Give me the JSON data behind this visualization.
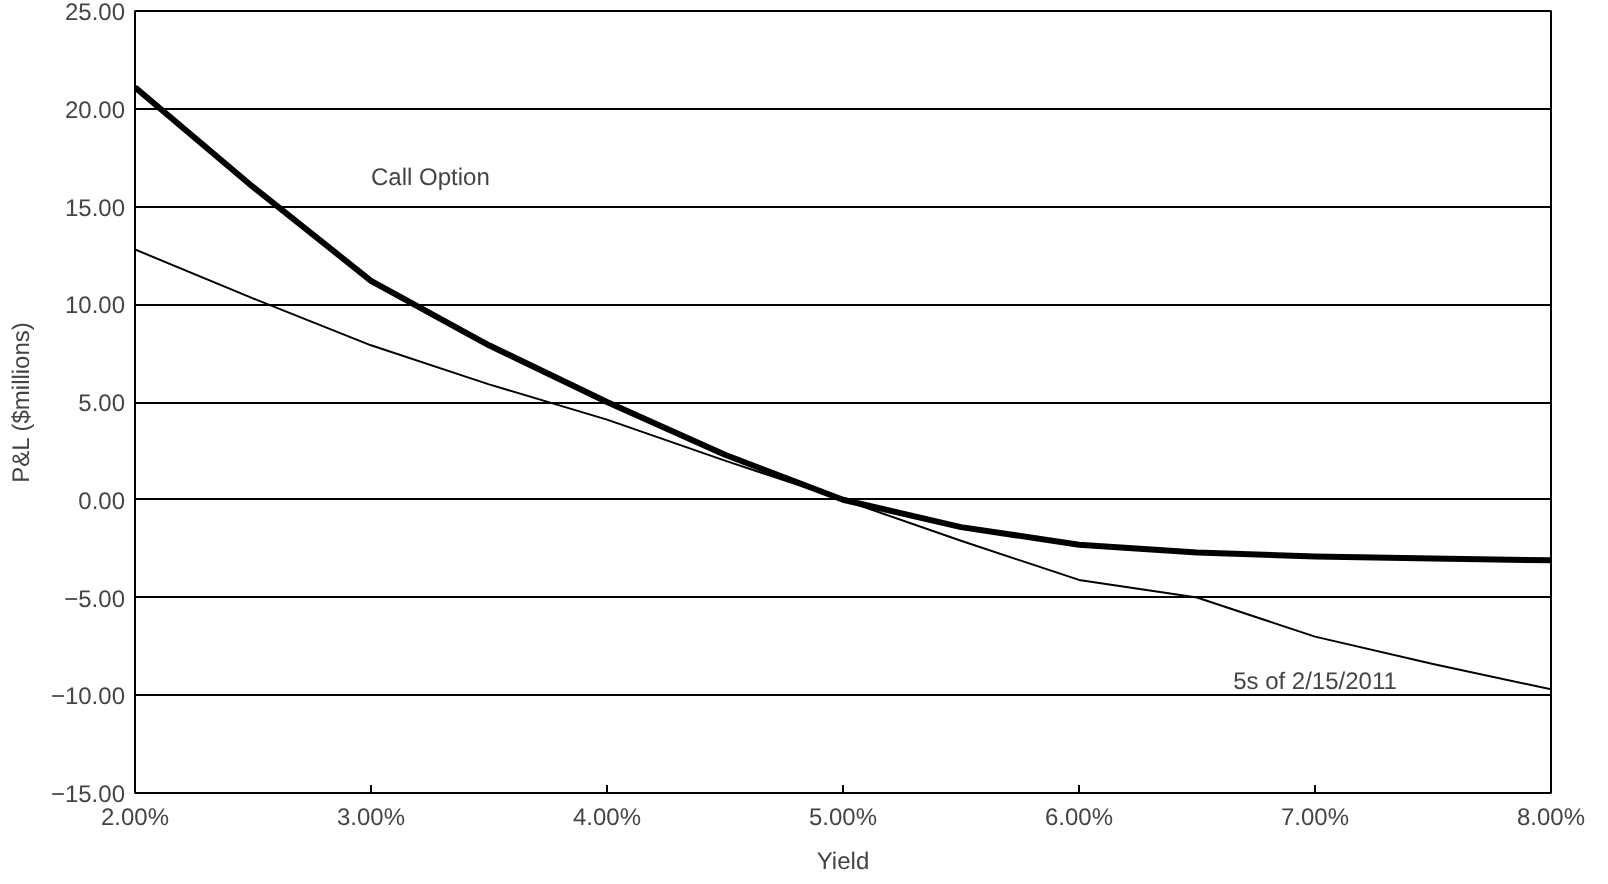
{
  "chart_data": {
    "type": "line",
    "xlabel": "Yield",
    "ylabel": "P&L ($millions)",
    "x": [
      2.0,
      2.5,
      3.0,
      3.5,
      4.0,
      4.5,
      5.0,
      5.5,
      6.0,
      6.5,
      7.0,
      7.5,
      8.0
    ],
    "series": [
      {
        "name": "Call Option",
        "color": "#000000",
        "values": [
          21.1,
          16.0,
          11.2,
          7.9,
          5.0,
          2.3,
          0.0,
          -1.4,
          -2.3,
          -2.7,
          -2.9,
          -3.0,
          -3.1
        ]
      },
      {
        "name": "5s of 2/15/2011",
        "color": "#000000",
        "values": [
          12.8,
          10.3,
          7.9,
          5.9,
          4.1,
          2.0,
          0.0,
          -2.1,
          -4.1,
          -5.0,
          -7.0,
          -8.4,
          -9.7
        ]
      }
    ],
    "xlim": [
      2.0,
      8.0
    ],
    "xticks": [
      {
        "value": 2,
        "label": "2.00%"
      },
      {
        "value": 3,
        "label": "3.00%"
      },
      {
        "value": 4,
        "label": "4.00%"
      },
      {
        "value": 5,
        "label": "5.00%"
      },
      {
        "value": 6,
        "label": "6.00%"
      },
      {
        "value": 7,
        "label": "7.00%"
      },
      {
        "value": 8,
        "label": "8.00%"
      }
    ],
    "ylim": [
      -15,
      25
    ],
    "yticks": [
      {
        "value": -15,
        "label": "−15.00"
      },
      {
        "value": -10,
        "label": "−10.00"
      },
      {
        "value": -5,
        "label": "−5.00"
      },
      {
        "value": 0,
        "label": "0.00"
      },
      {
        "value": 5,
        "label": "5.00"
      },
      {
        "value": 10,
        "label": "10.00"
      },
      {
        "value": 15,
        "label": "15.00"
      },
      {
        "value": 20,
        "label": "20.00"
      },
      {
        "value": 25,
        "label": "25.00"
      }
    ],
    "grid": "y",
    "marker": "none",
    "line_style": "solid"
  }
}
